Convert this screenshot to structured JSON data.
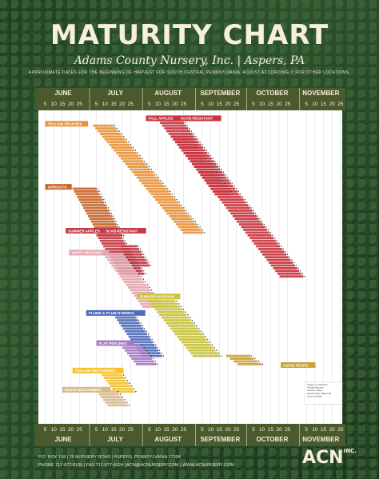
{
  "title": "MATURITY CHART",
  "subtitle": "Adams County Nursery, Inc. | Aspers, PA",
  "note": "APPROXIMATE DATES FOR THE BEGINNING OF HARVEST FOR SOUTH CENTRAL PENNSYLVANIA. ADJUST ACCORDINGLY FOR OTHER LOCATIONS.",
  "footer": {
    "address": "P.O. BOX 108 | 26 NURSERY ROAD | ASPERS, PENNSYLVANIA 17304",
    "contact": "PHONE 717-677-8105 | FAX 717-677-4124 | ACN@ACNURSERY.COM | WWW.ACNURSERY.COM"
  },
  "logo": {
    "text": "ACN",
    "suffix": "INC."
  },
  "colors": {
    "frame": "#4a5a2c",
    "header_text": "#f5f0dc",
    "plot_bg": "#ffffff",
    "grid": "#d8d8d8",
    "peach": "#e8923a",
    "apple": "#c9353e",
    "apricot": "#c8652a",
    "summer_apple": "#c23a45",
    "white_peach": "#e3a6b0",
    "pear": "#c9c23a",
    "plum": "#4f6db8",
    "flat_peach": "#a77ac6",
    "yellow_nectarine": "#f2c230",
    "white_nectarine": "#d9b98a",
    "asian_pear": "#c9a23a"
  },
  "chart_data": {
    "type": "gantt",
    "x_axis": {
      "months": [
        "JUNE",
        "JULY",
        "AUGUST",
        "SEPTEMBER",
        "OCTOBER",
        "NOVEMBER"
      ],
      "ticks": [
        "5",
        "10",
        "15",
        "20",
        "25"
      ],
      "range_days": [
        152,
        330
      ]
    },
    "legend_note": "Subject to pollination, fruit thinning and weather. Dates approximate; cultivar list is not complete.",
    "groups": [
      {
        "label": "YELLOW PEACHES",
        "color_key": "peach",
        "label_day": 156,
        "label_row": 3,
        "start": 184,
        "step": 1.35,
        "rows": 40,
        "len": 12,
        "row0": 4
      },
      {
        "label": "FALL APPLES",
        "color_key": "apple",
        "label_day": 215,
        "label_row": 1,
        "start": 222,
        "step": 1.25,
        "rows": 58,
        "len": 14,
        "row0": 2
      },
      {
        "label": "SCAB-RESISTANT",
        "color_key": "apple",
        "label_day": 234,
        "label_row": 1,
        "start": 230,
        "step": 1.2,
        "rows": 22,
        "len": 10,
        "row0": 8
      },
      {
        "label": "APRICOTS",
        "color_key": "apricot",
        "label_day": 156,
        "label_row": 26,
        "start": 172,
        "step": 0.9,
        "rows": 18,
        "len": 14,
        "row0": 27
      },
      {
        "label": "SUMMER APPLES",
        "color_key": "summer_apple",
        "label_day": 168,
        "label_row": 42,
        "start": 185,
        "step": 1.0,
        "rows": 16,
        "len": 14,
        "row0": 43
      },
      {
        "label": "SCAB-RESISTANT",
        "color_key": "summer_apple",
        "label_day": 190,
        "label_row": 42,
        "start": 200,
        "step": 1.0,
        "rows": 8,
        "len": 10,
        "row0": 48
      },
      {
        "label": "WHITE PEACHES",
        "color_key": "white_peach",
        "label_day": 170,
        "label_row": 50,
        "start": 190,
        "step": 1.2,
        "rows": 20,
        "len": 12,
        "row0": 51
      },
      {
        "label": "EUROPEAN PEARS",
        "color_key": "pear",
        "label_day": 210,
        "label_row": 66,
        "start": 215,
        "step": 1.3,
        "rows": 22,
        "len": 16,
        "row0": 67
      },
      {
        "label": "PLUMS & PLUM HYBRIDS",
        "color_key": "plum",
        "label_day": 180,
        "label_row": 72,
        "start": 196,
        "step": 1.1,
        "rows": 16,
        "len": 12,
        "row0": 73
      },
      {
        "label": "FLAT PEACHES",
        "color_key": "flat_peach",
        "label_day": 186,
        "label_row": 83,
        "start": 200,
        "step": 1.3,
        "rows": 8,
        "len": 12,
        "row0": 84
      },
      {
        "label": "YELLOW NECTARINES",
        "color_key": "yellow_nectarine",
        "label_day": 172,
        "label_row": 93,
        "start": 188,
        "step": 1.2,
        "rows": 8,
        "len": 12,
        "row0": 94
      },
      {
        "label": "WHITE NECTARINES",
        "color_key": "white_nectarine",
        "label_day": 166,
        "label_row": 100,
        "start": 186,
        "step": 1.3,
        "rows": 6,
        "len": 12,
        "row0": 101
      },
      {
        "label": "ASIAN PEARS",
        "color_key": "asian_pear",
        "label_day": 294,
        "label_row": 91,
        "start": 262,
        "step": 2.2,
        "rows": 4,
        "len": 14,
        "row0": 88
      }
    ]
  }
}
